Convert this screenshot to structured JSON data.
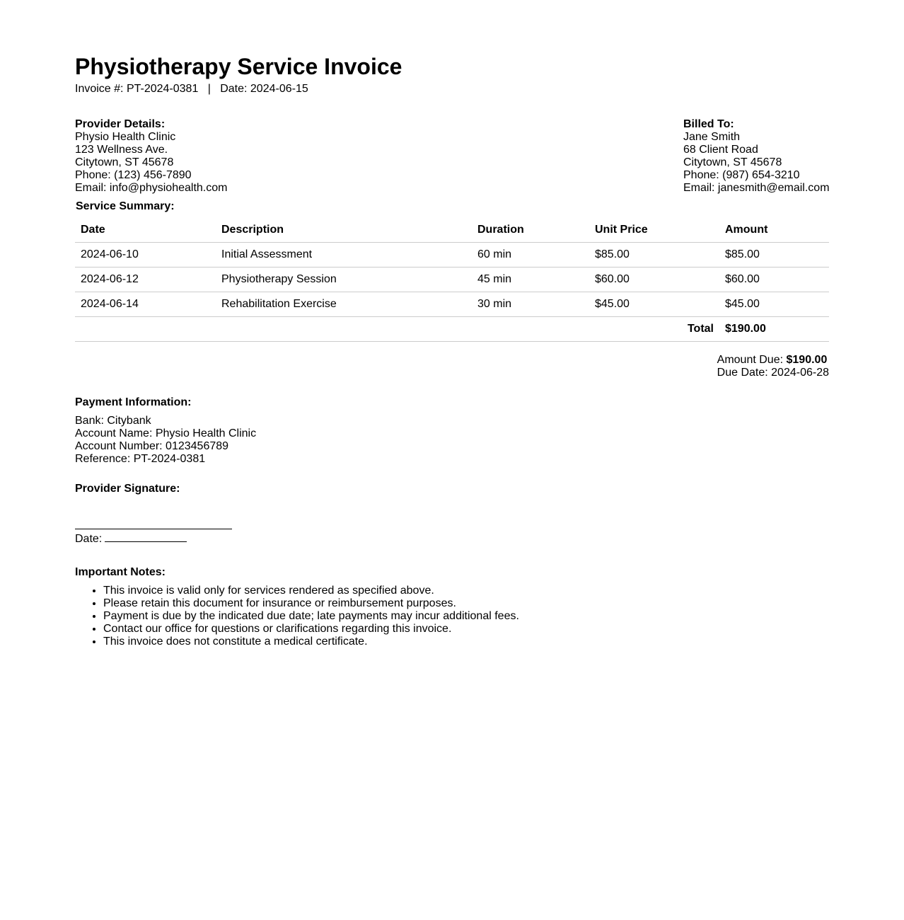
{
  "title": "Physiotherapy Service Invoice",
  "meta": {
    "invoice_label": "Invoice #:",
    "invoice_number": "PT-2024-0381",
    "separator": "|",
    "date_label": "Date:",
    "date": "2024-06-15"
  },
  "provider": {
    "heading": "Provider Details:",
    "lines": [
      "Physio Health Clinic",
      "123 Wellness Ave.",
      "Citytown, ST 45678",
      "Phone: (123) 456-7890",
      "Email: info@physiohealth.com"
    ]
  },
  "billed": {
    "heading": "Billed To:",
    "lines": [
      "Jane Smith",
      "68 Client Road",
      "Citytown, ST 45678",
      "Phone: (987) 654-3210",
      "Email: janesmith@email.com"
    ]
  },
  "summary": {
    "heading": "Service Summary:",
    "columns": [
      "Date",
      "Description",
      "Duration",
      "Unit Price",
      "Amount"
    ],
    "rows": [
      [
        "2024-06-10",
        "Initial Assessment",
        "60 min",
        "$85.00",
        "$85.00"
      ],
      [
        "2024-06-12",
        "Physiotherapy Session",
        "45 min",
        "$60.00",
        "$60.00"
      ],
      [
        "2024-06-14",
        "Rehabilitation Exercise",
        "30 min",
        "$45.00",
        "$45.00"
      ]
    ],
    "total_label": "Total",
    "total_value": "$190.00"
  },
  "due": {
    "amount_label": "Amount Due:",
    "amount": "$190.00",
    "date_label": "Due Date:",
    "date": "2024-06-28"
  },
  "payment": {
    "heading": "Payment Information:",
    "lines": [
      "Bank: Citybank",
      "Account Name: Physio Health Clinic",
      "Account Number: 0123456789",
      "Reference: PT-2024-0381"
    ]
  },
  "signature": {
    "heading": "Provider Signature:",
    "date_label": "Date:"
  },
  "notes": {
    "heading": "Important Notes:",
    "items": [
      "This invoice is valid only for services rendered as specified above.",
      "Please retain this document for insurance or reimbursement purposes.",
      "Payment is due by the indicated due date; late payments may incur additional fees.",
      "Contact our office for questions or clarifications regarding this invoice.",
      "This invoice does not constitute a medical certificate."
    ]
  }
}
